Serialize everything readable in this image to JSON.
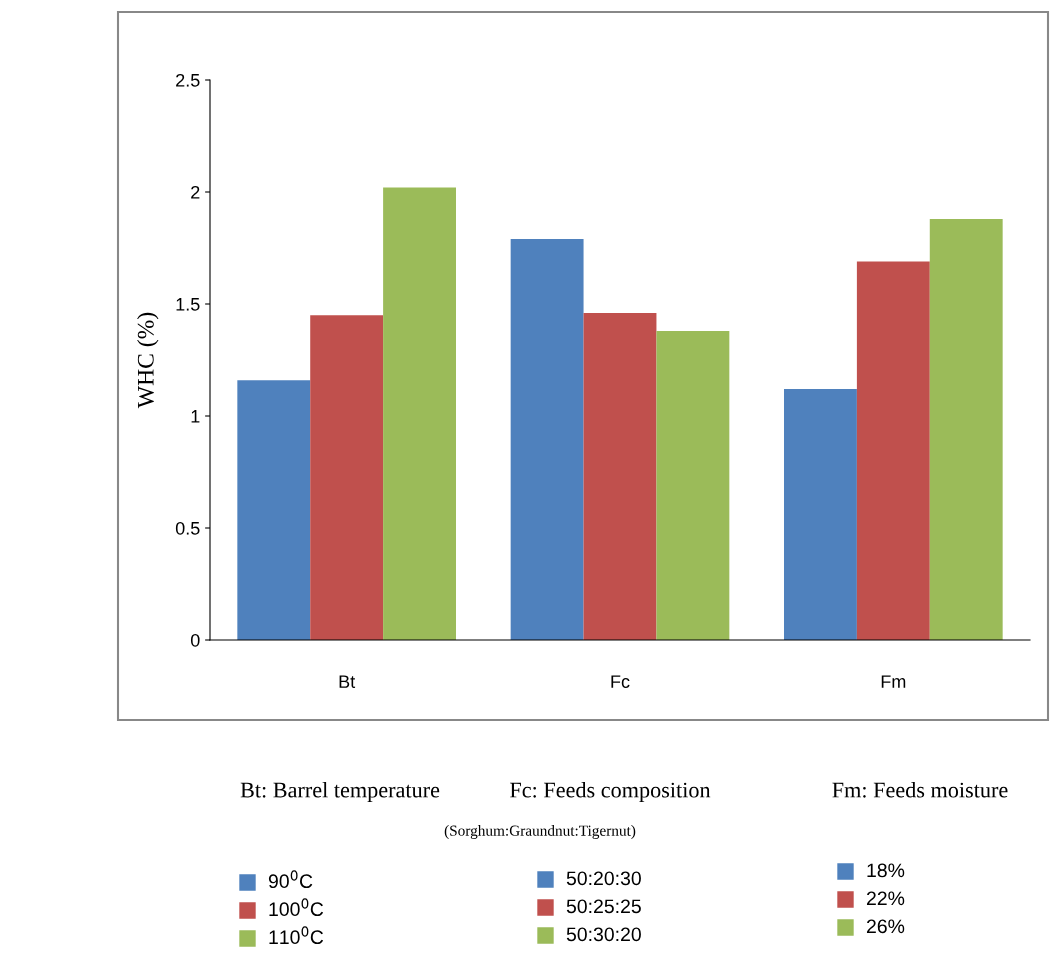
{
  "chart_data": {
    "type": "bar",
    "ylabel": "WHC (%)",
    "categories": [
      "Bt",
      "Fc",
      "Fm"
    ],
    "series": [
      {
        "color": "#4f81bd",
        "values": [
          1.16,
          1.79,
          1.12
        ]
      },
      {
        "color": "#c0504d",
        "values": [
          1.45,
          1.46,
          1.69
        ]
      },
      {
        "color": "#9bbb59",
        "values": [
          2.02,
          1.38,
          1.88
        ]
      }
    ],
    "ylim": [
      0,
      2.5
    ],
    "yticks": [
      0,
      0.5,
      1,
      1.5,
      2,
      2.5
    ],
    "grid": false,
    "annotations": [
      "Bt: Barrel temperature",
      "Fc: Feeds composition",
      "Fm: Feeds moisture",
      "(Sorghum:Graundnut:Tigernut)",
      "90$^{0}$C",
      "100$^{0}$C",
      "110$^{0}$C",
      "50:20:30",
      "50:25:25",
      "50:30:20",
      "18%",
      "22%",
      "26%"
    ]
  }
}
